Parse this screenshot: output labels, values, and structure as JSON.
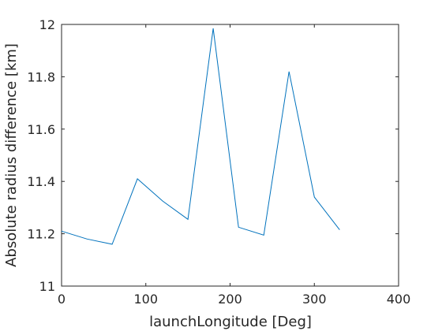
{
  "chart_data": {
    "type": "line",
    "title": "",
    "xlabel": "launchLongitude [Deg]",
    "ylabel": "Absolute radius difference [km]",
    "xlim": [
      0,
      400
    ],
    "ylim": [
      11,
      12
    ],
    "xticks": [
      0,
      100,
      200,
      300,
      400
    ],
    "yticks": [
      11,
      11.2,
      11.4,
      11.6,
      11.8,
      12
    ],
    "xtick_labels": [
      "0",
      "100",
      "200",
      "300",
      "400"
    ],
    "ytick_labels": [
      "11",
      "11.2",
      "11.4",
      "11.6",
      "11.8",
      "12"
    ],
    "grid": false,
    "legend": "none",
    "series": [
      {
        "color": "#0072BD",
        "x": [
          0,
          30,
          60,
          90,
          120,
          150,
          180,
          210,
          240,
          270,
          300,
          330
        ],
        "y": [
          11.21,
          11.18,
          11.16,
          11.41,
          11.325,
          11.255,
          11.985,
          11.225,
          11.195,
          11.82,
          11.34,
          11.215
        ]
      }
    ]
  }
}
